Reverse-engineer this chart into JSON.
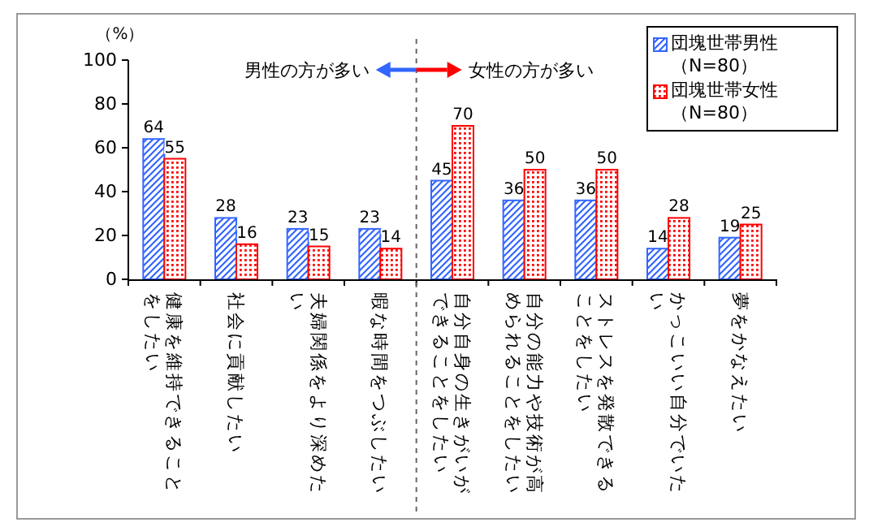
{
  "chart_data": {
    "type": "bar",
    "ylabel": "（%）",
    "categories": [
      "健康を維持できることをしたい",
      "社会に貢献したい",
      "夫婦関係をより深めたい",
      "暇な時間をつぶしたい",
      "自分自身の生きがいができることをしたい",
      "自分の能力や技術が高められることをしたい",
      "ストレスを発散できることをしたい",
      "かっこいい自分でいたい",
      "夢をかなえたい"
    ],
    "series": [
      {
        "name": "団塊世帯男性（N=80）",
        "color": "#3366ff",
        "values": [
          64,
          28,
          23,
          23,
          45,
          36,
          36,
          14,
          19
        ]
      },
      {
        "name": "団塊世帯女性（N=80）",
        "color": "#ff0000",
        "values": [
          55,
          16,
          15,
          14,
          70,
          50,
          50,
          28,
          25
        ]
      }
    ],
    "ylim": [
      0,
      100
    ],
    "yticks": [
      0,
      20,
      40,
      60,
      80,
      100
    ],
    "data_labels": true,
    "legend": "top right",
    "grid": false,
    "annotations": [
      "男性の方が多い",
      "女性の方が多い"
    ]
  }
}
